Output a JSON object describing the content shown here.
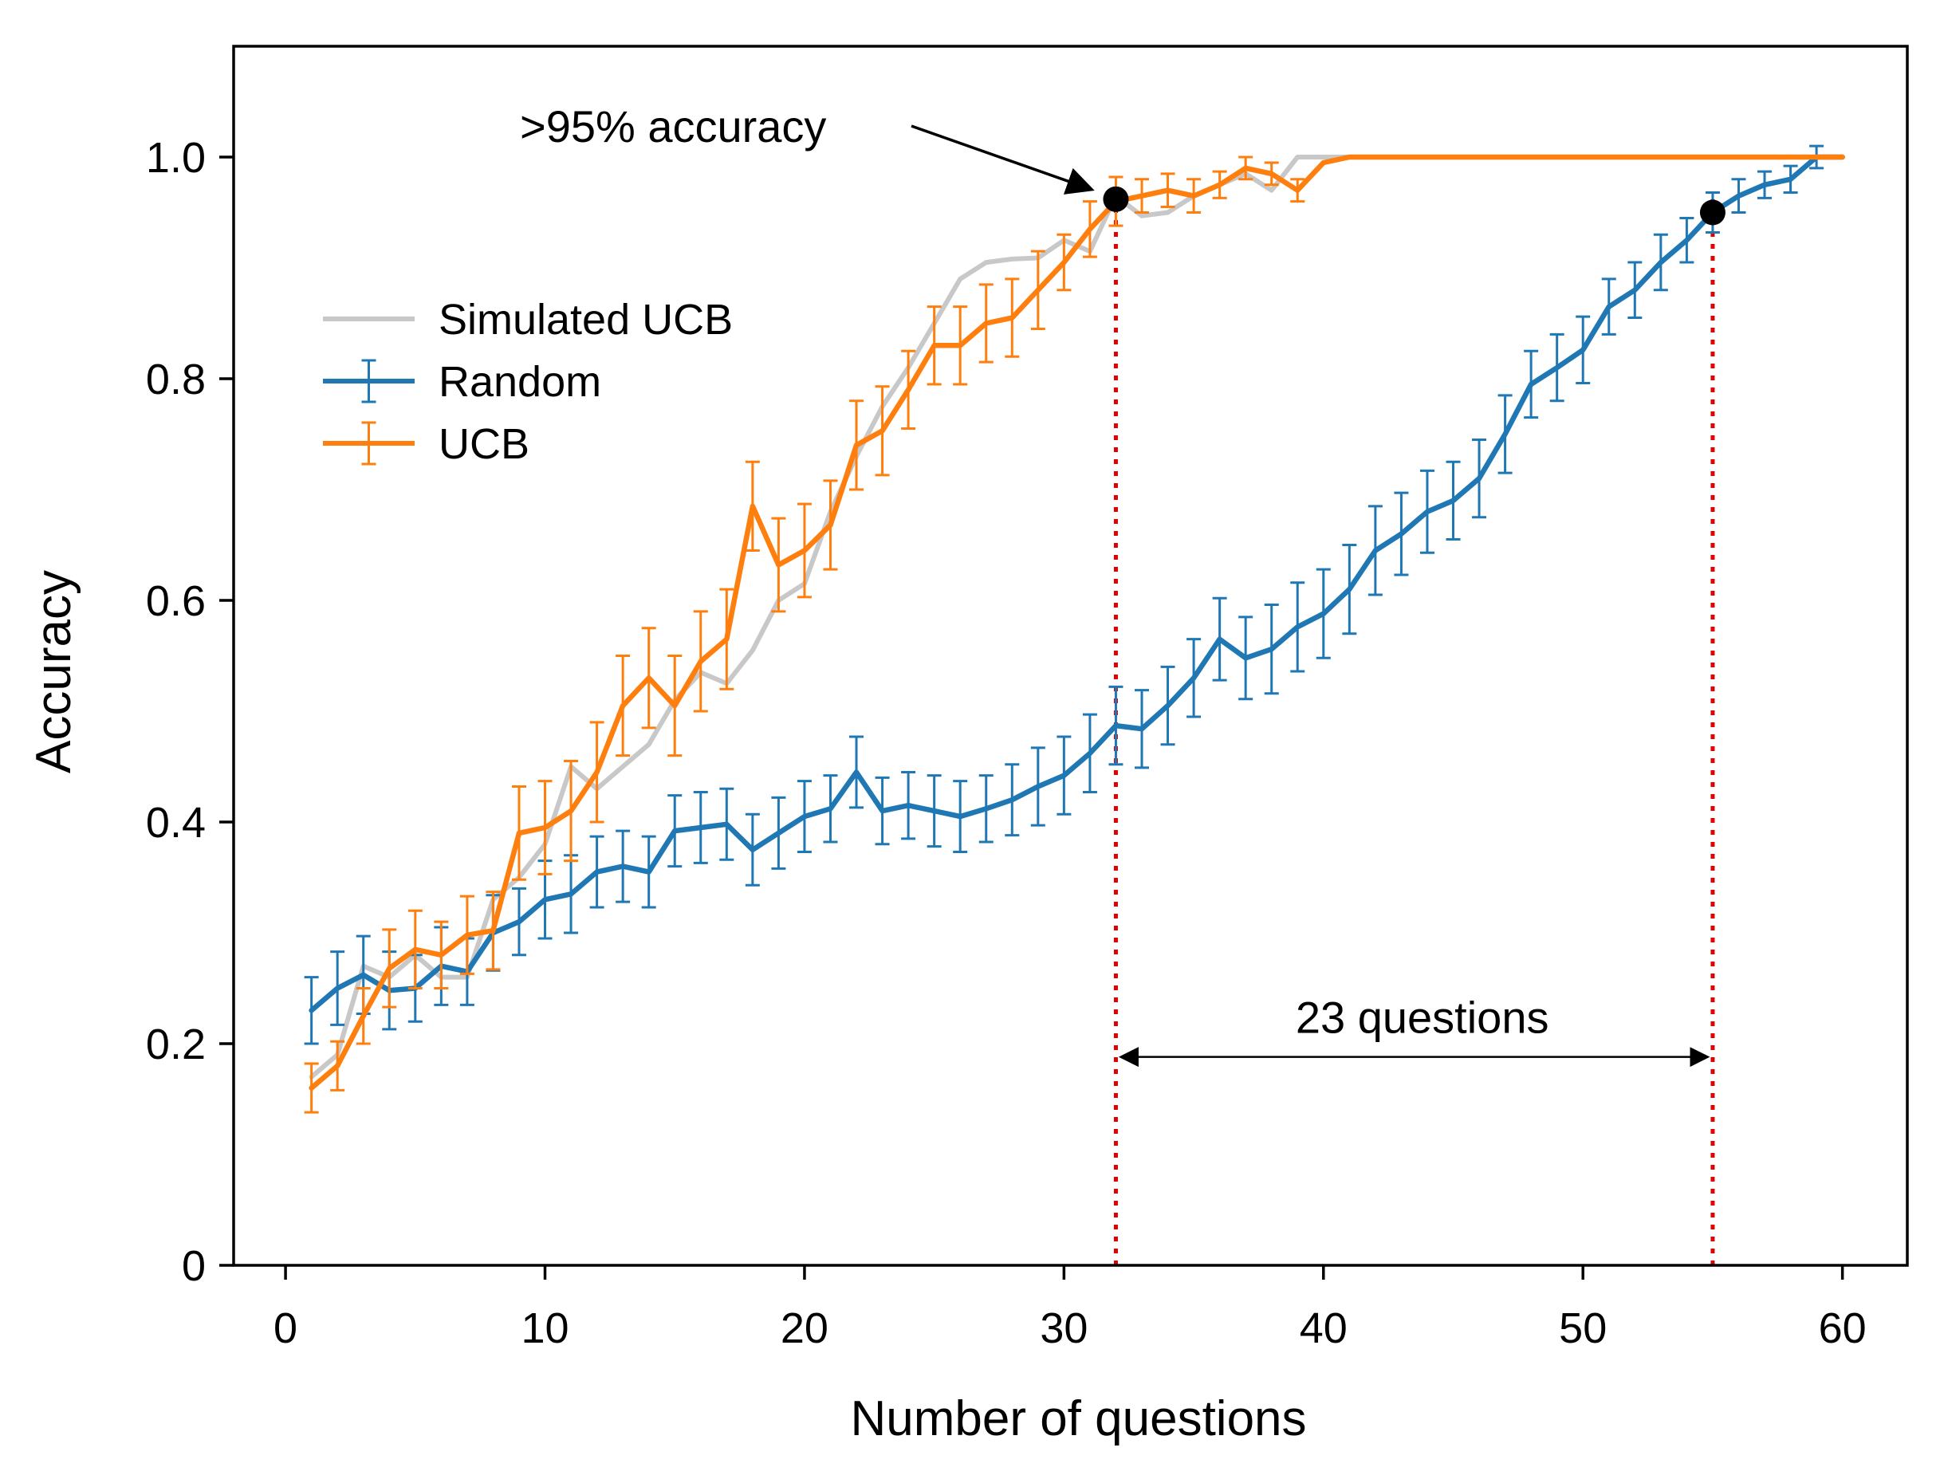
{
  "chart_data": {
    "type": "line",
    "title": "",
    "xlabel": "Number of questions",
    "ylabel": "Accuracy",
    "xlim": [
      -2,
      62.5
    ],
    "ylim": [
      0,
      1.1
    ],
    "xticks": [
      0,
      10,
      20,
      30,
      40,
      50,
      60
    ],
    "xtick_labels": [
      "0",
      "10",
      "20",
      "30",
      "40",
      "50",
      "60"
    ],
    "yticks": [
      0,
      0.2,
      0.4,
      0.6,
      0.8,
      1.0
    ],
    "ytick_labels": [
      "0",
      "0.2",
      "0.4",
      "0.6",
      "0.8",
      "1.0"
    ],
    "grid": false,
    "legend_position": "upper-left",
    "series": [
      {
        "name": "Simulated UCB",
        "color": "#c8c8c8",
        "error_bars": false,
        "x": [
          1,
          2,
          3,
          4,
          5,
          6,
          7,
          8,
          9,
          10,
          11,
          12,
          13,
          14,
          15,
          16,
          17,
          18,
          19,
          20,
          21,
          22,
          23,
          24,
          25,
          26,
          27,
          28,
          29,
          30,
          31,
          32,
          33,
          34,
          35,
          36,
          37,
          38,
          39,
          40,
          41,
          42,
          60
        ],
        "values": [
          0.17,
          0.19,
          0.27,
          0.26,
          0.28,
          0.26,
          0.26,
          0.33,
          0.35,
          0.38,
          0.45,
          0.43,
          0.45,
          0.47,
          0.51,
          0.535,
          0.525,
          0.555,
          0.6,
          0.615,
          0.68,
          0.73,
          0.775,
          0.81,
          0.85,
          0.89,
          0.905,
          0.908,
          0.909,
          0.925,
          0.915,
          0.965,
          0.947,
          0.95,
          0.965,
          0.975,
          0.985,
          0.97,
          1.0,
          1.0,
          1.0,
          1.0,
          1.0
        ]
      },
      {
        "name": "Random",
        "color": "#1f77b4",
        "error_bars": true,
        "x": [
          1,
          2,
          3,
          4,
          5,
          6,
          7,
          8,
          9,
          10,
          11,
          12,
          13,
          14,
          15,
          16,
          17,
          18,
          19,
          20,
          21,
          22,
          23,
          24,
          25,
          26,
          27,
          28,
          29,
          30,
          31,
          32,
          33,
          34,
          35,
          36,
          37,
          38,
          39,
          40,
          41,
          42,
          43,
          44,
          45,
          46,
          47,
          48,
          49,
          50,
          51,
          52,
          53,
          54,
          55,
          56,
          57,
          58,
          59,
          60
        ],
        "values": [
          0.23,
          0.25,
          0.262,
          0.248,
          0.25,
          0.27,
          0.265,
          0.3,
          0.31,
          0.33,
          0.335,
          0.355,
          0.36,
          0.355,
          0.392,
          0.395,
          0.398,
          0.375,
          0.39,
          0.405,
          0.412,
          0.445,
          0.41,
          0.415,
          0.41,
          0.405,
          0.412,
          0.42,
          0.432,
          0.442,
          0.462,
          0.487,
          0.484,
          0.505,
          0.53,
          0.565,
          0.548,
          0.556,
          0.576,
          0.588,
          0.61,
          0.645,
          0.66,
          0.68,
          0.69,
          0.71,
          0.75,
          0.795,
          0.81,
          0.826,
          0.865,
          0.88,
          0.905,
          0.925,
          0.95,
          0.965,
          0.975,
          0.98,
          1.0,
          1.0
        ],
        "errors": [
          0.03,
          0.033,
          0.035,
          0.035,
          0.03,
          0.035,
          0.03,
          0.034,
          0.03,
          0.035,
          0.035,
          0.032,
          0.032,
          0.032,
          0.032,
          0.032,
          0.032,
          0.032,
          0.032,
          0.032,
          0.03,
          0.032,
          0.03,
          0.03,
          0.032,
          0.032,
          0.03,
          0.032,
          0.035,
          0.035,
          0.035,
          0.035,
          0.035,
          0.035,
          0.035,
          0.037,
          0.037,
          0.04,
          0.04,
          0.04,
          0.04,
          0.04,
          0.037,
          0.037,
          0.035,
          0.035,
          0.035,
          0.03,
          0.03,
          0.03,
          0.025,
          0.025,
          0.025,
          0.02,
          0.018,
          0.015,
          0.012,
          0.012,
          0.01,
          0.0
        ]
      },
      {
        "name": "UCB",
        "color": "#ff7f0e",
        "error_bars": true,
        "x": [
          1,
          2,
          3,
          4,
          5,
          6,
          7,
          8,
          9,
          10,
          11,
          12,
          13,
          14,
          15,
          16,
          17,
          18,
          19,
          20,
          21,
          22,
          23,
          24,
          25,
          26,
          27,
          28,
          29,
          30,
          31,
          32,
          33,
          34,
          35,
          36,
          37,
          38,
          39,
          40,
          41,
          42,
          60
        ],
        "values": [
          0.16,
          0.18,
          0.225,
          0.268,
          0.285,
          0.28,
          0.298,
          0.302,
          0.39,
          0.395,
          0.41,
          0.445,
          0.505,
          0.53,
          0.505,
          0.545,
          0.565,
          0.685,
          0.632,
          0.645,
          0.668,
          0.74,
          0.753,
          0.79,
          0.83,
          0.83,
          0.85,
          0.855,
          0.88,
          0.905,
          0.935,
          0.96,
          0.965,
          0.97,
          0.965,
          0.975,
          0.99,
          0.985,
          0.97,
          0.995,
          1.0,
          1.0,
          1.0
        ],
        "errors": [
          0.022,
          0.022,
          0.025,
          0.035,
          0.035,
          0.03,
          0.035,
          0.035,
          0.042,
          0.042,
          0.045,
          0.045,
          0.045,
          0.045,
          0.045,
          0.045,
          0.045,
          0.04,
          0.042,
          0.042,
          0.04,
          0.04,
          0.04,
          0.035,
          0.035,
          0.035,
          0.035,
          0.035,
          0.035,
          0.025,
          0.025,
          0.022,
          0.015,
          0.015,
          0.015,
          0.012,
          0.01,
          0.01,
          0.01,
          0.0,
          0.0,
          0.0,
          0.0
        ]
      }
    ],
    "markers": [
      {
        "x": 32,
        "y": 0.962,
        "color": "#000000"
      },
      {
        "x": 55,
        "y": 0.95,
        "color": "#000000"
      }
    ],
    "threshold_lines": [
      {
        "x": 32,
        "color": "#e00000"
      },
      {
        "x": 55,
        "color": "#e00000"
      }
    ],
    "annotations": {
      "accuracy_text": ">95% accuracy",
      "accuracy_arrow_to": {
        "x": 32,
        "y": 0.962
      },
      "questions_text": "23 questions",
      "span": {
        "x1": 32,
        "x2": 55,
        "y": 0.188
      }
    }
  }
}
